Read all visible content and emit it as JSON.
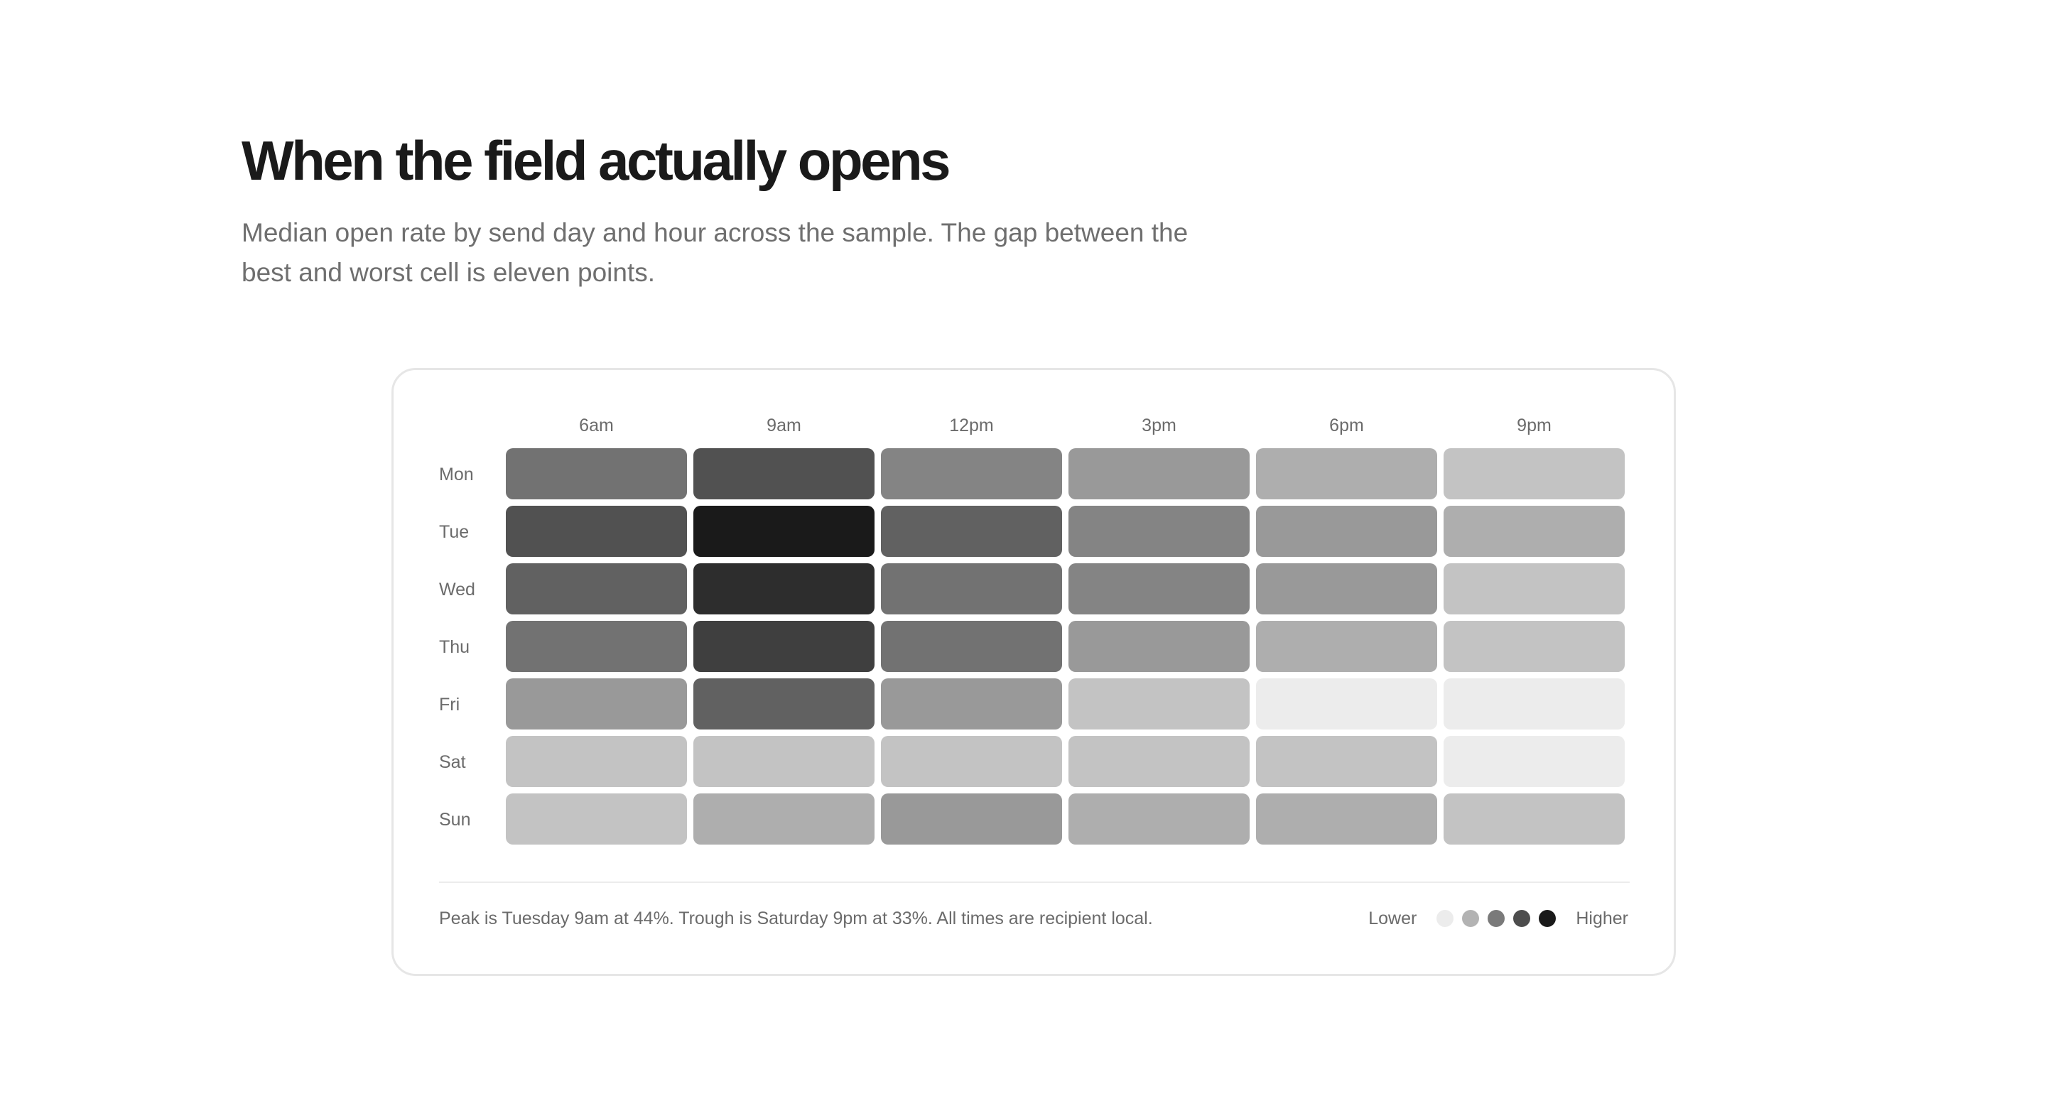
{
  "header": {
    "title": "When the field actually opens",
    "subtitle": "Median open rate by send day and hour across the sample. The gap between the best and worst cell is eleven points."
  },
  "chart_data": {
    "type": "heatmap",
    "x_labels": [
      "6am",
      "9am",
      "12pm",
      "3pm",
      "6pm",
      "9pm"
    ],
    "y_labels": [
      "Mon",
      "Tue",
      "Wed",
      "Thu",
      "Fri",
      "Sat",
      "Sun"
    ],
    "values": [
      [
        39,
        41,
        38,
        37,
        36,
        35
      ],
      [
        41,
        44,
        40,
        38,
        37,
        36
      ],
      [
        40,
        43,
        39,
        38,
        37,
        35
      ],
      [
        39,
        42,
        39,
        37,
        36,
        35
      ],
      [
        37,
        40,
        37,
        35,
        33,
        33
      ],
      [
        35,
        35,
        35,
        35,
        35,
        33
      ],
      [
        35,
        36,
        37,
        36,
        36,
        35
      ]
    ],
    "value_range": [
      33,
      44
    ],
    "unit": "%",
    "color_scale": [
      "#ececec",
      "#b3b3b3",
      "#7a7a7a",
      "#4d4d4d",
      "#1a1a1a"
    ],
    "legend": {
      "low_label": "Lower",
      "high_label": "Higher",
      "swatches": [
        "#ececec",
        "#b3b3b3",
        "#7a7a7a",
        "#4d4d4d",
        "#1a1a1a"
      ]
    }
  },
  "footnote": "Peak is Tuesday 9am at 44%. Trough is Saturday 9pm at 33%. All times are recipient local."
}
